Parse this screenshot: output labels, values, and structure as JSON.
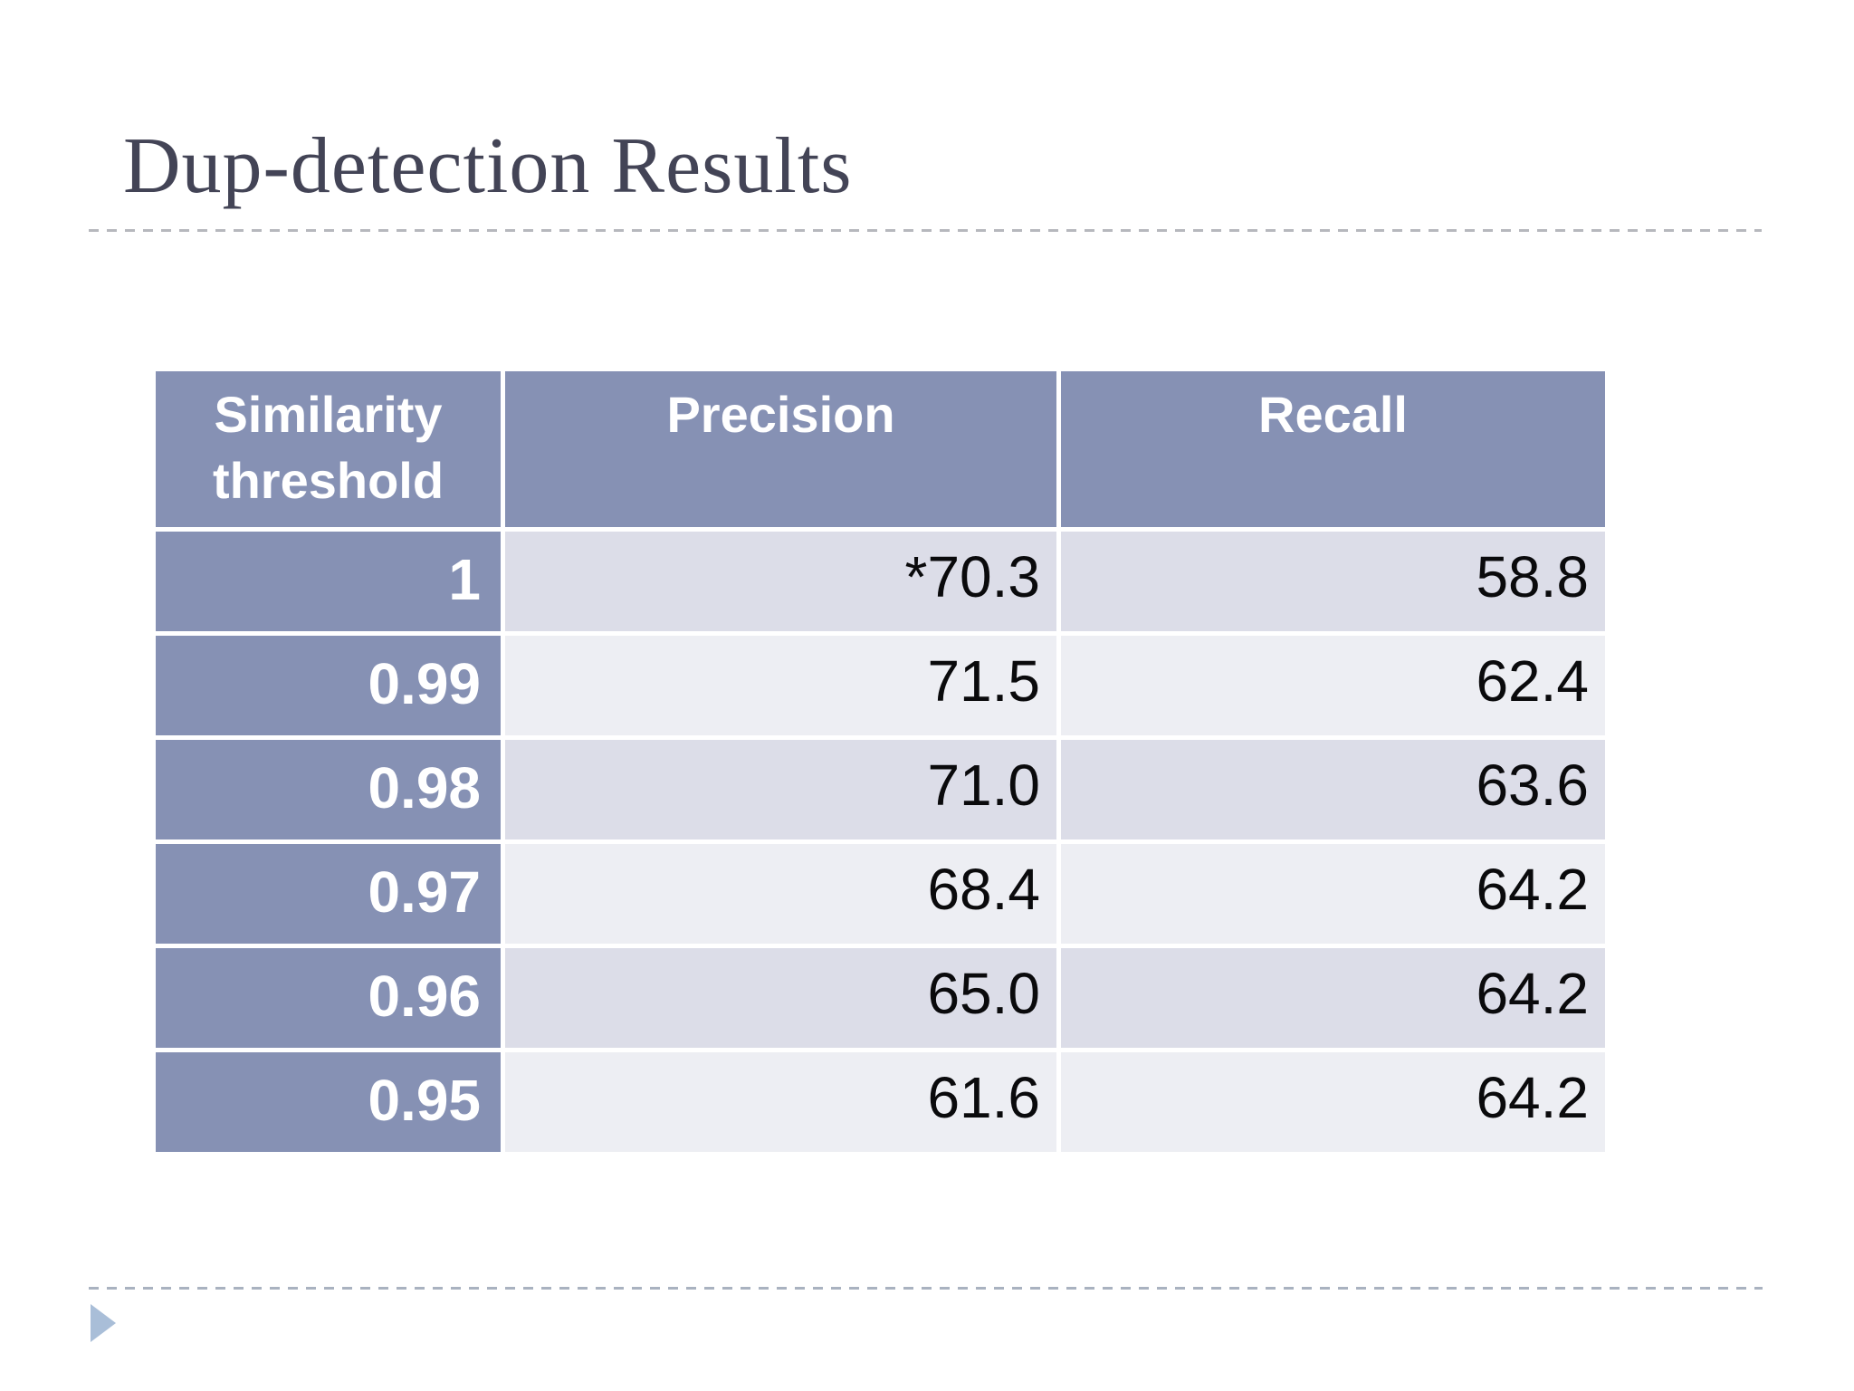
{
  "slide_title": "Dup-detection Results",
  "table": {
    "headers": [
      "Similarity threshold",
      "Precision",
      "Recall"
    ],
    "rows": [
      [
        "1",
        "*70.3",
        "58.8"
      ],
      [
        "0.99",
        "71.5",
        "62.4"
      ],
      [
        "0.98",
        "71.0",
        "63.6"
      ],
      [
        "0.97",
        "68.4",
        "64.2"
      ],
      [
        "0.96",
        "65.0",
        "64.2"
      ],
      [
        "0.95",
        "61.6",
        "64.2"
      ]
    ]
  },
  "colors": {
    "accent": "#8691b4",
    "band-a": "#dcdde8",
    "band-b": "#edeef3",
    "title-color": "#434456",
    "dash-top": "#b6b8bd",
    "dash-bottom": "#a9b2c0",
    "arrow": "#a9bed8"
  }
}
